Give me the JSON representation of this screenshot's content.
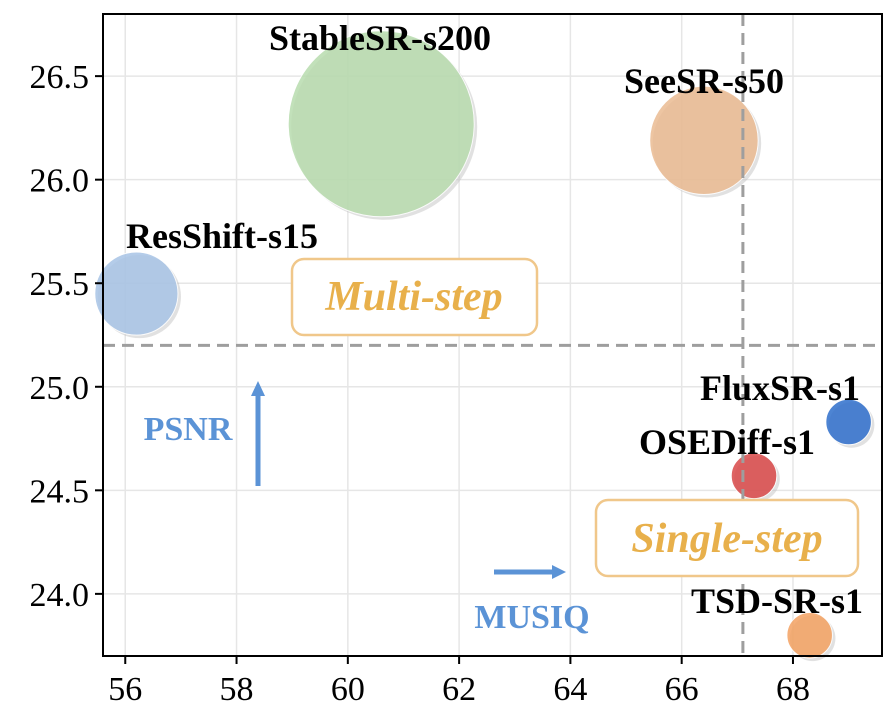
{
  "chart_data": {
    "type": "scatter",
    "title": "",
    "xlabel": "",
    "ylabel": "",
    "xlim": [
      55.6,
      69.6
    ],
    "ylim": [
      23.7,
      26.8
    ],
    "xticks": [
      56,
      58,
      60,
      62,
      64,
      66,
      68
    ],
    "yticks": [
      24.0,
      24.5,
      25.0,
      25.5,
      26.0,
      26.5
    ],
    "xtick_labels": [
      "56",
      "58",
      "60",
      "62",
      "64",
      "66",
      "68"
    ],
    "ytick_labels": [
      "24.0",
      "24.5",
      "25.0",
      "25.5",
      "26.0",
      "26.5"
    ],
    "grid": true,
    "points": [
      {
        "label": "StableSR-s200",
        "x": 60.6,
        "y": 26.27,
        "size": 1.0,
        "color": "#b8dcae"
      },
      {
        "label": "SeeSR-s50",
        "x": 66.4,
        "y": 26.19,
        "size": 0.34,
        "color": "#ebbb92"
      },
      {
        "label": "ResShift-s15",
        "x": 56.2,
        "y": 25.45,
        "size": 0.2,
        "color": "#a8c4e6"
      },
      {
        "label": "FluxSR-s1",
        "x": 69.0,
        "y": 24.83,
        "size": 0.06,
        "color": "#2f6fcc"
      },
      {
        "label": "OSEDiff-s1",
        "x": 67.3,
        "y": 24.57,
        "size": 0.06,
        "color": "#d94848"
      },
      {
        "label": "TSD-SR-s1",
        "x": 68.3,
        "y": 23.8,
        "size": 0.06,
        "color": "#f4a262"
      }
    ],
    "reference_lines": {
      "x": 67.1,
      "y": 25.2
    },
    "regions": {
      "multi": "Multi-step",
      "single": "Single-step"
    },
    "hints": {
      "y_metric": "PSNR",
      "x_metric": "MUSIQ",
      "color": "#5b93d6"
    }
  }
}
